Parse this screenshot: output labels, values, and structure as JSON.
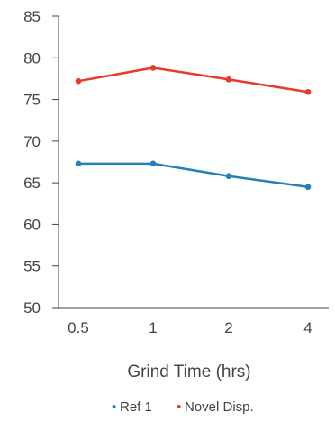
{
  "chart_data": {
    "type": "line",
    "categories": [
      "0.5",
      "1",
      "2",
      "4"
    ],
    "series": [
      {
        "name": "Ref 1",
        "values": [
          67.3,
          67.3,
          65.8,
          64.5
        ],
        "color": "#2580b6"
      },
      {
        "name": "Novel Disp.",
        "values": [
          77.2,
          78.8,
          77.4,
          75.9
        ],
        "color": "#e8392b"
      }
    ],
    "y_ticks": [
      50,
      55,
      60,
      65,
      70,
      75,
      80,
      85
    ],
    "ylim": [
      50,
      85
    ],
    "xlabel": "Grind Time (hrs)",
    "ylabel": "",
    "title": "",
    "grid": false,
    "legend_position": "bottom-center",
    "legend_marker": "•"
  }
}
